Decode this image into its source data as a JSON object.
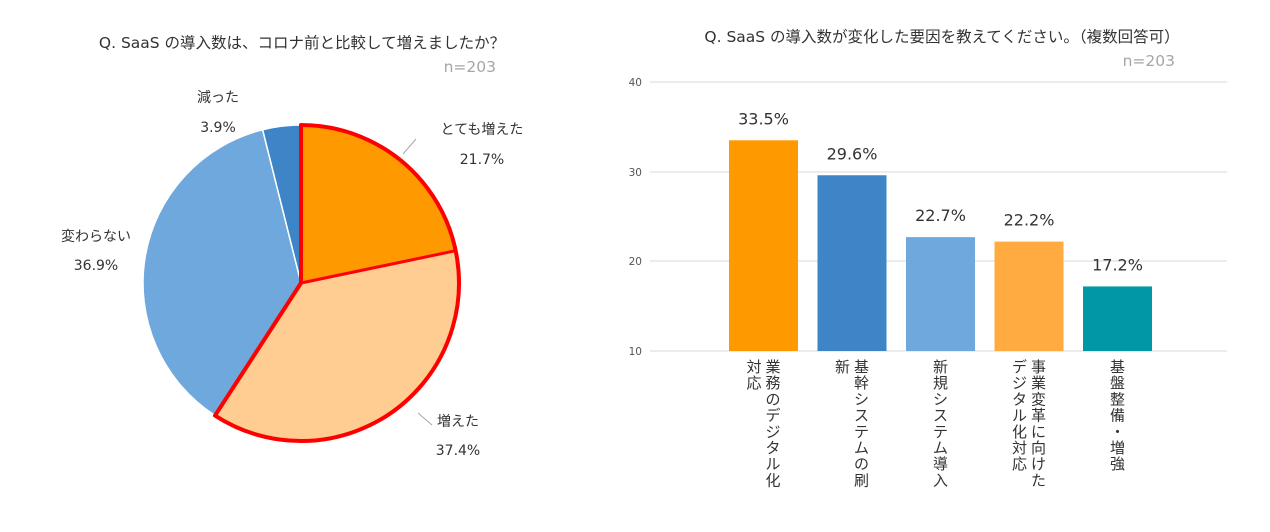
{
  "colors": {
    "dark_orange": "#ff9900",
    "light_orange": "#ffcc91",
    "light_blue": "#6fa8dc",
    "mid_blue": "#3d85c6",
    "amber": "#ffab40",
    "teal": "#0097a7",
    "highlight": "#ff0000",
    "grid": "#d9d9d9",
    "sample_text": "#a6a6a6"
  },
  "chart_data": [
    {
      "type": "pie",
      "title": "Q. SaaS の導入数は、コロナ前と比較して増えましたか？",
      "sample_size": "n=203",
      "slices": [
        {
          "label": "とても増えた",
          "value": 21.7,
          "value_label": "21.7%",
          "color": "#ff9900",
          "highlighted": true
        },
        {
          "label": "増えた",
          "value": 37.4,
          "value_label": "37.4%",
          "color": "#ffcc91",
          "highlighted": true
        },
        {
          "label": "変わらない",
          "value": 36.9,
          "value_label": "36.9%",
          "color": "#6fa8dc",
          "highlighted": false
        },
        {
          "label": "減った",
          "value": 3.9,
          "value_label": "3.9%",
          "color": "#3d85c6",
          "highlighted": false
        }
      ],
      "start_angle_deg": 0,
      "direction": "clockwise"
    },
    {
      "type": "bar",
      "title": "Q. SaaS の導入数が変化した要因を教えてください。（複数回答可）",
      "sample_size": "n=203",
      "ylim": [
        10,
        40
      ],
      "yticks": [
        "10",
        "20",
        "30",
        "40"
      ],
      "grid": true,
      "categories": [
        [
          "業務のデジタル化",
          "対応"
        ],
        [
          "基幹システムの刷",
          "新"
        ],
        [
          "新規システム導入"
        ],
        [
          "事業変革に向けた",
          "デジタル化対応"
        ],
        [
          "基盤整備・増強"
        ]
      ],
      "values": [
        33.5,
        29.6,
        22.7,
        22.2,
        17.2
      ],
      "value_labels": [
        "33.5%",
        "29.6%",
        "22.7%",
        "22.2%",
        "17.2%"
      ],
      "bar_colors": [
        "#ff9900",
        "#3d85c6",
        "#6fa8dc",
        "#ffab40",
        "#0097a7"
      ]
    }
  ]
}
